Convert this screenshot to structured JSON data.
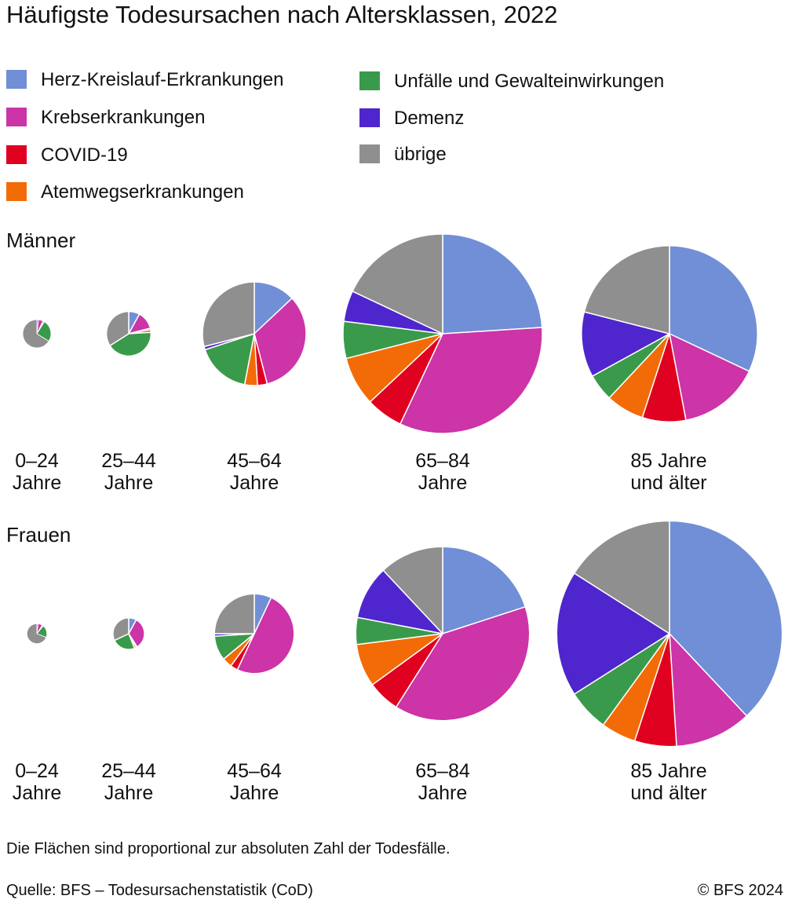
{
  "chart_data": {
    "type": "pie",
    "title": "Häufigste Todesursachen nach Altersklassen, 2022",
    "legend": [
      {
        "key": "herz",
        "label": "Herz-Kreislauf-Erkrankungen",
        "color": "#718fd6"
      },
      {
        "key": "krebs",
        "label": "Krebserkrankungen",
        "color": "#cc34a8"
      },
      {
        "key": "covid",
        "label": "COVID-19",
        "color": "#e00020"
      },
      {
        "key": "atem",
        "label": "Atemwegserkrankungen",
        "color": "#f36b06"
      },
      {
        "key": "unfall",
        "label": "Unfälle und Gewalteinwirkungen",
        "color": "#3a9a4b"
      },
      {
        "key": "demenz",
        "label": "Demenz",
        "color": "#4f26cd"
      },
      {
        "key": "uebrige",
        "label": "übrige",
        "color": "#8f8f8f"
      }
    ],
    "series_order": [
      "herz",
      "krebs",
      "covid",
      "atem",
      "unfall",
      "demenz",
      "uebrige"
    ],
    "note": "Die Flächen sind proportional zur absoluten Zahl der Todesfälle.",
    "source": "Quelle: BFS – Todesursachenstatistik (CoD)",
    "copyright": "© BFS 2024",
    "groups": [
      {
        "name": "Männer",
        "ages": [
          {
            "label_line1": "0–24",
            "label_line2": "Jahre",
            "total_relative": 0.02,
            "shares": [
              0.02,
              0.05,
              0.01,
              0.01,
              0.25,
              0.0,
              0.66
            ]
          },
          {
            "label_line1": "25–44",
            "label_line2": "Jahre",
            "total_relative": 0.05,
            "shares": [
              0.08,
              0.13,
              0.01,
              0.02,
              0.42,
              0.0,
              0.34
            ]
          },
          {
            "label_line1": "45–64",
            "label_line2": "Jahre",
            "total_relative": 0.27,
            "shares": [
              0.13,
              0.33,
              0.03,
              0.04,
              0.17,
              0.01,
              0.29
            ]
          },
          {
            "label_line1": "65–84",
            "label_line2": "Jahre",
            "total_relative": 1.0,
            "shares": [
              0.24,
              0.33,
              0.06,
              0.08,
              0.06,
              0.05,
              0.18
            ]
          },
          {
            "label_line1": "85 Jahre",
            "label_line2": "und älter",
            "total_relative": 0.78,
            "shares": [
              0.32,
              0.15,
              0.08,
              0.07,
              0.05,
              0.12,
              0.21
            ]
          }
        ]
      },
      {
        "name": "Frauen",
        "ages": [
          {
            "label_line1": "0–24",
            "label_line2": "Jahre",
            "total_relative": 0.01,
            "shares": [
              0.02,
              0.07,
              0.01,
              0.01,
              0.2,
              0.0,
              0.69
            ]
          },
          {
            "label_line1": "25–44",
            "label_line2": "Jahre",
            "total_relative": 0.025,
            "shares": [
              0.08,
              0.33,
              0.01,
              0.02,
              0.24,
              0.0,
              0.32
            ]
          },
          {
            "label_line1": "45–64",
            "label_line2": "Jahre",
            "total_relative": 0.16,
            "shares": [
              0.07,
              0.5,
              0.03,
              0.04,
              0.1,
              0.01,
              0.25
            ]
          },
          {
            "label_line1": "65–84",
            "label_line2": "Jahre",
            "total_relative": 0.76,
            "shares": [
              0.2,
              0.39,
              0.06,
              0.08,
              0.05,
              0.1,
              0.12
            ]
          },
          {
            "label_line1": "85 Jahre",
            "label_line2": "und älter",
            "total_relative": 1.28,
            "shares": [
              0.38,
              0.11,
              0.06,
              0.05,
              0.06,
              0.18,
              0.16
            ]
          }
        ]
      }
    ]
  }
}
